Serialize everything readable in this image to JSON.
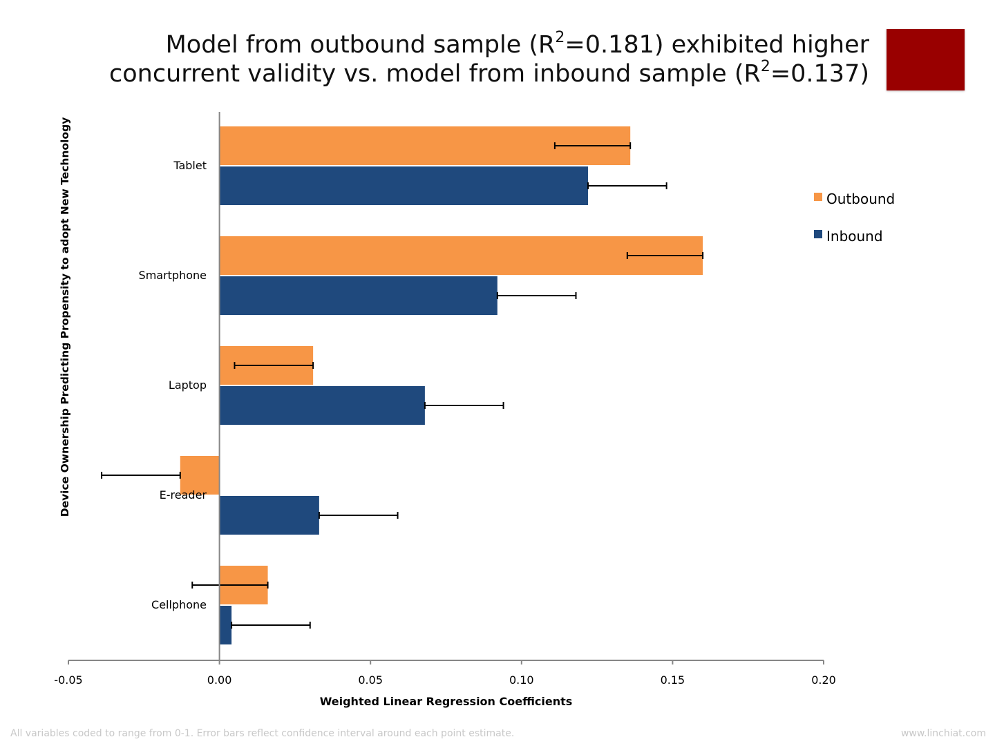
{
  "title": {
    "line1_pre": "Model from outbound sample (R",
    "line1_sup": "2",
    "line1_post": "=0.181) exhibited higher",
    "line2_pre": "concurrent validity vs. model from inbound sample (R",
    "line2_sup": "2",
    "line2_post": "=0.137)"
  },
  "colors": {
    "accent_box": "#990000",
    "outbound": "#F79646",
    "inbound": "#1F497D",
    "axis": "#868686",
    "error_bar": "#000000",
    "footer_text": "#c8c8c8"
  },
  "footer": {
    "note": "All variables coded to range from 0-1. Error bars reflect confidence interval around each point estimate.",
    "site": "www.linchiat.com"
  },
  "chart_data": {
    "type": "bar",
    "orientation": "horizontal",
    "categories": [
      "Tablet",
      "Smartphone",
      "Laptop",
      "E-reader",
      "Cellphone"
    ],
    "series": [
      {
        "name": "Outbound",
        "color": "#F79646",
        "values": [
          0.136,
          0.16,
          0.031,
          -0.013,
          0.016
        ],
        "error_low": [
          0.111,
          0.135,
          0.005,
          -0.039,
          -0.009
        ]
      },
      {
        "name": "Inbound",
        "color": "#1F497D",
        "values": [
          0.122,
          0.092,
          0.068,
          0.033,
          0.004
        ],
        "error_high": [
          0.148,
          0.118,
          0.094,
          0.059,
          0.03
        ]
      }
    ],
    "xlabel": "Weighted Linear Regression Coefficients",
    "ylabel": "Device Ownership Predicting Propensity to adopt New Technology",
    "xlim": [
      -0.05,
      0.2
    ],
    "xticks": [
      -0.05,
      0.0,
      0.05,
      0.1,
      0.15,
      0.2
    ],
    "xtick_labels": [
      "-0.05",
      "0.00",
      "0.05",
      "0.10",
      "0.15",
      "0.20"
    ],
    "grid": false,
    "legend": "right"
  }
}
